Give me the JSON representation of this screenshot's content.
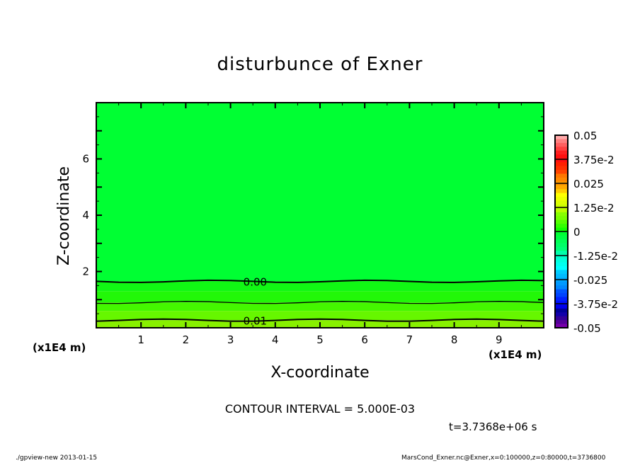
{
  "chart_data": {
    "type": "contour",
    "title": "disturbunce of Exner",
    "xlabel": "X-coordinate",
    "ylabel": "Z-coordinate",
    "x_unit_label": "(x1E4 m)",
    "y_unit_label": "(x1E4 m)",
    "xlim": [
      0,
      10
    ],
    "ylim": [
      0,
      8
    ],
    "x_ticks": [
      "1",
      "2",
      "3",
      "4",
      "5",
      "6",
      "7",
      "8",
      "9"
    ],
    "y_ticks": [
      "2",
      "4",
      "6"
    ],
    "contours": [
      {
        "level": "0.00",
        "z": 1.65,
        "labeled": true
      },
      {
        "level": "0.005",
        "z": 0.9,
        "labeled": false
      },
      {
        "level": "0.01",
        "z": 0.27,
        "labeled": true
      }
    ],
    "fill_bands": [
      {
        "zmin": 1.65,
        "zmax": 8,
        "color": "#00ff33"
      },
      {
        "zmin": 1.3,
        "zmax": 1.65,
        "color": "#11f714"
      },
      {
        "zmin": 0.9,
        "zmax": 1.3,
        "color": "#22f708"
      },
      {
        "zmin": 0.6,
        "zmax": 0.9,
        "color": "#44f700"
      },
      {
        "zmin": 0.27,
        "zmax": 0.6,
        "color": "#66f700"
      },
      {
        "zmin": 0,
        "zmax": 0.27,
        "color": "#88f000"
      }
    ],
    "colorbar": {
      "range": [
        -0.05,
        0.05
      ],
      "labels": [
        "0.05",
        "3.75e-2",
        "0.025",
        "1.25e-2",
        "0",
        "-1.25e-2",
        "-0.025",
        "-3.75e-2",
        "-0.05"
      ],
      "colors": [
        "#ffaaaa",
        "#ff8080",
        "#ff6060",
        "#ff4040",
        "#ff2020",
        "#ff1010",
        "#ff1010",
        "#ff2000",
        "#ff3000",
        "#ff4400",
        "#ff7700",
        "#ff8800",
        "#ff9900",
        "#ffaa00",
        "#ffcc00",
        "#ffff00",
        "#eeff00",
        "#ddff00",
        "#ccff00",
        "#bbff00",
        "#88ff00",
        "#77ff00",
        "#55ff00",
        "#33ff00",
        "#11ff00",
        "#00ff33",
        "#00ff44",
        "#00ff55",
        "#00ff66",
        "#00ff77",
        "#00ffaa",
        "#00ffcc",
        "#00ffdd",
        "#00ffee",
        "#00ffff",
        "#00ccff",
        "#00bbff",
        "#00aaff",
        "#0099ff",
        "#0088ff",
        "#0055ff",
        "#0044ff",
        "#0022ff",
        "#0011ff",
        "#0000ee",
        "#000099",
        "#1100aa",
        "#330099",
        "#550099",
        "#7700aa"
      ]
    }
  },
  "annotations": {
    "contour_interval": "CONTOUR INTERVAL = 5.000E-03",
    "time": "t=3.7368e+06 s",
    "footer_left": "./gpview-new  2013-01-15",
    "footer_right": "MarsCond_Exner.nc@Exner,x=0:100000,z=0:80000,t=3736800"
  }
}
